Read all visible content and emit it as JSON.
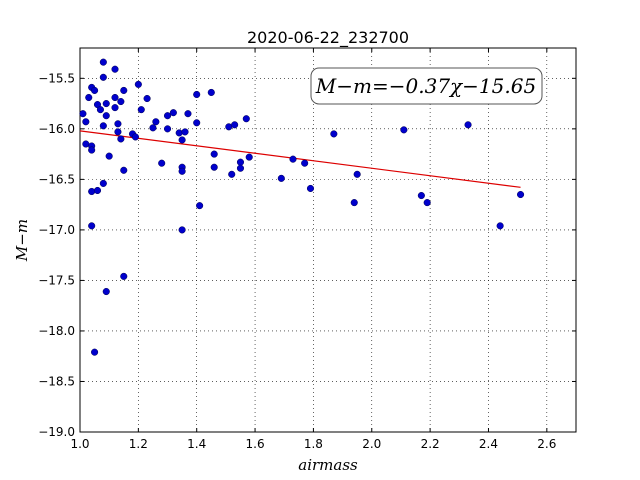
{
  "chart_data": {
    "type": "scatter",
    "title": "2020-06-22_232700",
    "xlabel": "airmass",
    "ylabel": "M−m",
    "xlim": [
      1.0,
      2.7
    ],
    "ylim": [
      -19.0,
      -15.2
    ],
    "xticks": [
      1.0,
      1.2,
      1.4,
      1.6,
      1.8,
      2.0,
      2.2,
      2.4,
      2.6
    ],
    "xtick_labels": [
      "1.0",
      "1.2",
      "1.4",
      "1.6",
      "1.8",
      "2.0",
      "2.2",
      "2.4",
      "2.6"
    ],
    "yticks": [
      -19.0,
      -18.5,
      -18.0,
      -17.5,
      -17.0,
      -16.5,
      -16.0,
      -15.5
    ],
    "ytick_labels": [
      "−19.0",
      "−18.5",
      "−18.0",
      "−17.5",
      "−17.0",
      "−16.5",
      "−16.0",
      "−15.5"
    ],
    "grid": true,
    "annotation": "M−m=−0.37χ−15.65",
    "annotation_position": "top-right",
    "point_color": "#0000cc",
    "fit_color": "#dd0000",
    "fit": {
      "slope": -0.37,
      "intercept": -15.65,
      "x_start": 1.0,
      "x_end": 2.51
    },
    "points": [
      [
        1.01,
        -15.85
      ],
      [
        1.02,
        -15.93
      ],
      [
        1.02,
        -16.15
      ],
      [
        1.03,
        -15.69
      ],
      [
        1.04,
        -16.17
      ],
      [
        1.04,
        -16.21
      ],
      [
        1.04,
        -16.62
      ],
      [
        1.04,
        -16.96
      ],
      [
        1.04,
        -15.59
      ],
      [
        1.05,
        -15.62
      ],
      [
        1.05,
        -18.21
      ],
      [
        1.06,
        -15.76
      ],
      [
        1.06,
        -16.61
      ],
      [
        1.07,
        -15.81
      ],
      [
        1.08,
        -15.34
      ],
      [
        1.08,
        -15.49
      ],
      [
        1.08,
        -16.54
      ],
      [
        1.08,
        -15.97
      ],
      [
        1.09,
        -15.87
      ],
      [
        1.09,
        -17.61
      ],
      [
        1.09,
        -15.75
      ],
      [
        1.1,
        -16.27
      ],
      [
        1.12,
        -15.41
      ],
      [
        1.12,
        -15.79
      ],
      [
        1.12,
        -15.69
      ],
      [
        1.13,
        -16.03
      ],
      [
        1.13,
        -15.95
      ],
      [
        1.14,
        -15.73
      ],
      [
        1.14,
        -16.1
      ],
      [
        1.15,
        -17.46
      ],
      [
        1.15,
        -15.62
      ],
      [
        1.15,
        -16.41
      ],
      [
        1.18,
        -16.05
      ],
      [
        1.19,
        -16.08
      ],
      [
        1.2,
        -15.56
      ],
      [
        1.21,
        -15.81
      ],
      [
        1.23,
        -15.7
      ],
      [
        1.25,
        -15.99
      ],
      [
        1.26,
        -15.93
      ],
      [
        1.28,
        -16.34
      ],
      [
        1.3,
        -15.87
      ],
      [
        1.3,
        -16.0
      ],
      [
        1.32,
        -15.84
      ],
      [
        1.34,
        -16.04
      ],
      [
        1.35,
        -17.0
      ],
      [
        1.35,
        -16.38
      ],
      [
        1.35,
        -16.42
      ],
      [
        1.35,
        -16.11
      ],
      [
        1.36,
        -16.03
      ],
      [
        1.37,
        -15.85
      ],
      [
        1.4,
        -15.66
      ],
      [
        1.4,
        -15.94
      ],
      [
        1.41,
        -16.76
      ],
      [
        1.45,
        -15.64
      ],
      [
        1.46,
        -16.25
      ],
      [
        1.46,
        -16.38
      ],
      [
        1.51,
        -15.98
      ],
      [
        1.52,
        -16.45
      ],
      [
        1.53,
        -15.96
      ],
      [
        1.55,
        -16.33
      ],
      [
        1.55,
        -16.39
      ],
      [
        1.57,
        -15.9
      ],
      [
        1.58,
        -16.28
      ],
      [
        1.69,
        -16.49
      ],
      [
        1.73,
        -16.3
      ],
      [
        1.77,
        -16.34
      ],
      [
        1.79,
        -16.59
      ],
      [
        1.87,
        -16.05
      ],
      [
        1.94,
        -16.73
      ],
      [
        1.95,
        -16.45
      ],
      [
        2.11,
        -16.01
      ],
      [
        2.17,
        -16.66
      ],
      [
        2.19,
        -16.73
      ],
      [
        2.33,
        -15.96
      ],
      [
        2.44,
        -16.96
      ],
      [
        2.51,
        -16.65
      ]
    ]
  }
}
